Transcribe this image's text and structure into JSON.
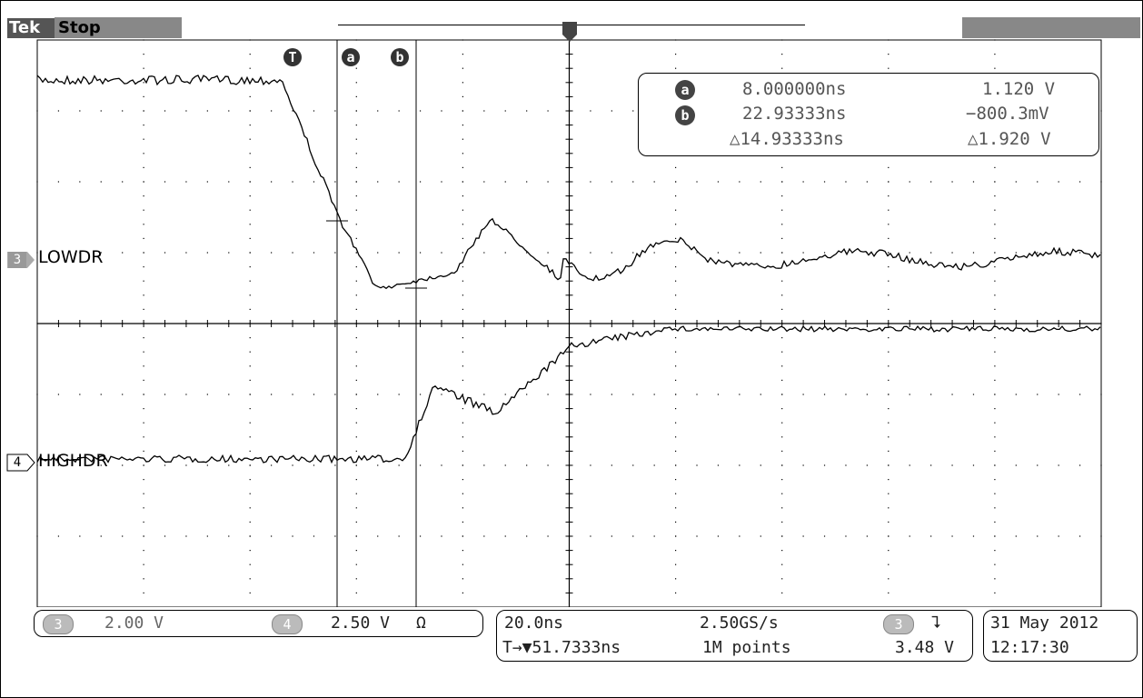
{
  "header": {
    "brand": "Tek",
    "status": "Stop"
  },
  "channels": {
    "ch3_label": "LOWDR",
    "ch4_label": "HIGHDR",
    "ch3_num": "3",
    "ch4_num": "4"
  },
  "cursors": {
    "trigger_tag": "T",
    "a_tag": "a",
    "b_tag": "b"
  },
  "measurements": {
    "a_symbol": "a",
    "b_symbol": "b",
    "a_time": "8.000000ns",
    "a_value": "1.120 V",
    "b_time": "22.93333ns",
    "b_value": "−800.3mV",
    "delta_time": "△14.93333ns",
    "delta_value": "△1.920 V"
  },
  "readouts": {
    "ch3_badge": "3",
    "ch3_scale": "2.00 V",
    "ch4_badge": "4",
    "ch4_scale": "2.50 V",
    "ch4_coupling": "Ω",
    "timebase": "20.0ns",
    "sample_rate": "2.50GS/s",
    "trigger_delay": "T→▼51.7333ns",
    "record_length": "1M points",
    "trigger_source": "3",
    "trigger_slope": "⮧",
    "trigger_level": "3.48 V",
    "date": "31 May 2012",
    "time": "12:17:30"
  },
  "colors": {
    "trace": "#000000",
    "grid": "#000000",
    "badge": "#bbbbbb"
  }
}
